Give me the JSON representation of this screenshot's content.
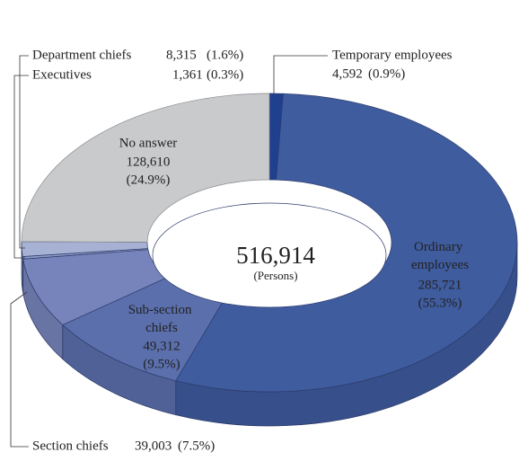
{
  "chart_data": {
    "type": "pie",
    "donut": true,
    "three_d": true,
    "categories": [
      "Temporary employees",
      "Ordinary employees",
      "Sub-section chiefs",
      "Section chiefs",
      "Executives",
      "Department chiefs",
      "No answer"
    ],
    "values": [
      4592,
      285721,
      49312,
      39003,
      1361,
      8315,
      128610
    ],
    "value_labels": [
      "4,592",
      "285,721",
      "49,312",
      "39,003",
      "1,361",
      "8,315",
      "128,610"
    ],
    "percentages": [
      0.9,
      55.3,
      9.5,
      7.5,
      0.3,
      1.6,
      24.9
    ],
    "percentage_labels": [
      "(0.9%)",
      "(55.3%)",
      "(9.5%)",
      "(7.5%)",
      "(0.3%)",
      "(1.6%)",
      "(24.9%)"
    ],
    "colors": [
      "#1f3f8f",
      "#3f5c9f",
      "#5a6fac",
      "#7684bb",
      "#8e9bc7",
      "#a7b1d4",
      "#c8cacc"
    ],
    "total": 516914,
    "total_label": "516,914",
    "total_unit": "(Persons)"
  }
}
